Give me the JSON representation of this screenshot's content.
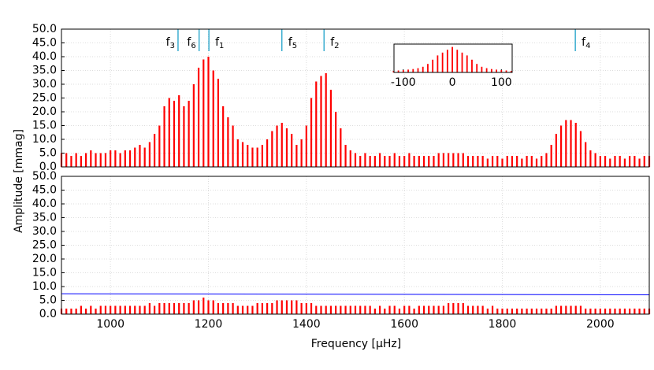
{
  "chart_data": [
    {
      "type": "bar",
      "color": "#ff0000",
      "grid": true,
      "xlim": [
        900,
        2100
      ],
      "ylim": [
        0,
        50
      ],
      "xticks": [
        1000,
        1200,
        1400,
        1600,
        1800,
        2000
      ],
      "yticks": [
        {
          "value": 0,
          "label": "0.0"
        },
        {
          "value": 5,
          "label": "5.0"
        },
        {
          "value": 10,
          "label": "10.0"
        },
        {
          "value": 15,
          "label": "15.0"
        },
        {
          "value": 20,
          "label": "20.0"
        },
        {
          "value": 25,
          "label": "25.0"
        },
        {
          "value": 30,
          "label": "30.0"
        },
        {
          "value": 35,
          "label": "35.0"
        },
        {
          "value": 40,
          "label": "40.0"
        },
        {
          "value": 45,
          "label": "45.0"
        },
        {
          "value": 50,
          "label": "50.0"
        }
      ],
      "x": [
        900,
        910,
        920,
        930,
        940,
        950,
        960,
        970,
        980,
        990,
        1000,
        1010,
        1020,
        1030,
        1040,
        1050,
        1060,
        1070,
        1080,
        1090,
        1100,
        1110,
        1120,
        1130,
        1140,
        1150,
        1160,
        1170,
        1180,
        1190,
        1200,
        1210,
        1220,
        1230,
        1240,
        1250,
        1260,
        1270,
        1280,
        1290,
        1300,
        1310,
        1320,
        1330,
        1340,
        1350,
        1360,
        1370,
        1380,
        1390,
        1400,
        1410,
        1420,
        1430,
        1440,
        1450,
        1460,
        1470,
        1480,
        1490,
        1500,
        1510,
        1520,
        1530,
        1540,
        1550,
        1560,
        1570,
        1580,
        1590,
        1600,
        1610,
        1620,
        1630,
        1640,
        1650,
        1660,
        1670,
        1680,
        1690,
        1700,
        1710,
        1720,
        1730,
        1740,
        1750,
        1760,
        1770,
        1780,
        1790,
        1800,
        1810,
        1820,
        1830,
        1840,
        1850,
        1860,
        1870,
        1880,
        1890,
        1900,
        1910,
        1920,
        1930,
        1940,
        1950,
        1960,
        1970,
        1980,
        1990,
        2000,
        2010,
        2020,
        2030,
        2040,
        2050,
        2060,
        2070,
        2080,
        2090,
        2100
      ],
      "values": [
        5,
        5,
        4,
        5,
        4,
        5,
        6,
        5,
        5,
        5,
        6,
        6,
        5,
        6,
        6,
        7,
        8,
        7,
        9,
        12,
        15,
        22,
        25,
        24,
        26,
        22,
        24,
        30,
        36,
        39,
        40,
        35,
        32,
        22,
        18,
        15,
        10,
        9,
        8,
        7,
        7,
        8,
        10,
        13,
        15,
        16,
        14,
        12,
        8,
        10,
        15,
        25,
        31,
        33,
        34,
        28,
        20,
        14,
        8,
        6,
        5,
        4,
        5,
        4,
        4,
        5,
        4,
        4,
        5,
        4,
        4,
        5,
        4,
        4,
        4,
        4,
        4,
        5,
        5,
        5,
        5,
        5,
        5,
        4,
        4,
        4,
        4,
        3,
        4,
        4,
        3,
        4,
        4,
        4,
        3,
        4,
        4,
        3,
        4,
        5,
        8,
        12,
        15,
        17,
        17,
        16,
        13,
        9,
        6,
        5,
        4,
        4,
        3,
        4,
        4,
        3,
        4,
        4,
        3,
        4,
        4
      ],
      "annotations": [
        {
          "x": 1138,
          "text": "f",
          "sub": "3",
          "side": "left"
        },
        {
          "x": 1181,
          "text": "f",
          "sub": "6",
          "side": "left"
        },
        {
          "x": 1201,
          "text": "f",
          "sub": "1",
          "side": "right"
        },
        {
          "x": 1350,
          "text": "f",
          "sub": "5",
          "side": "right"
        },
        {
          "x": 1436,
          "text": "f",
          "sub": "2",
          "side": "right"
        },
        {
          "x": 1949,
          "text": "f",
          "sub": "4",
          "side": "right"
        }
      ]
    },
    {
      "type": "bar",
      "color": "#ff0000",
      "grid": true,
      "xlabel": "Frequency [μHz]",
      "ylabel": "Amplitude [mmag]",
      "xlim": [
        900,
        2100
      ],
      "ylim": [
        0,
        50
      ],
      "xticks": [
        1000,
        1200,
        1400,
        1600,
        1800,
        2000
      ],
      "yticks": [
        {
          "value": 0,
          "label": "0.0"
        },
        {
          "value": 5,
          "label": "5.0"
        },
        {
          "value": 10,
          "label": "10.0"
        },
        {
          "value": 15,
          "label": "15.0"
        },
        {
          "value": 20,
          "label": "20.0"
        },
        {
          "value": 25,
          "label": "25.0"
        },
        {
          "value": 30,
          "label": "30.0"
        },
        {
          "value": 35,
          "label": "35.0"
        },
        {
          "value": 40,
          "label": "40.0"
        },
        {
          "value": 45,
          "label": "45.0"
        },
        {
          "value": 50,
          "label": "50.0"
        }
      ],
      "x": [
        900,
        910,
        920,
        930,
        940,
        950,
        960,
        970,
        980,
        990,
        1000,
        1010,
        1020,
        1030,
        1040,
        1050,
        1060,
        1070,
        1080,
        1090,
        1100,
        1110,
        1120,
        1130,
        1140,
        1150,
        1160,
        1170,
        1180,
        1190,
        1200,
        1210,
        1220,
        1230,
        1240,
        1250,
        1260,
        1270,
        1280,
        1290,
        1300,
        1310,
        1320,
        1330,
        1340,
        1350,
        1360,
        1370,
        1380,
        1390,
        1400,
        1410,
        1420,
        1430,
        1440,
        1450,
        1460,
        1470,
        1480,
        1490,
        1500,
        1510,
        1520,
        1530,
        1540,
        1550,
        1560,
        1570,
        1580,
        1590,
        1600,
        1610,
        1620,
        1630,
        1640,
        1650,
        1660,
        1670,
        1680,
        1690,
        1700,
        1710,
        1720,
        1730,
        1740,
        1750,
        1760,
        1770,
        1780,
        1790,
        1800,
        1810,
        1820,
        1830,
        1840,
        1850,
        1860,
        1870,
        1880,
        1890,
        1900,
        1910,
        1920,
        1930,
        1940,
        1950,
        1960,
        1970,
        1980,
        1990,
        2000,
        2010,
        2020,
        2030,
        2040,
        2050,
        2060,
        2070,
        2080,
        2090,
        2100
      ],
      "values": [
        2,
        2,
        2,
        2,
        3,
        2,
        3,
        2,
        3,
        3,
        3,
        3,
        3,
        3,
        3,
        3,
        3,
        3,
        4,
        3,
        4,
        4,
        4,
        4,
        4,
        4,
        4,
        5,
        5,
        6,
        5,
        5,
        4,
        4,
        4,
        4,
        3,
        3,
        3,
        3,
        4,
        4,
        4,
        4,
        5,
        5,
        5,
        5,
        5,
        4,
        4,
        4,
        3,
        3,
        3,
        3,
        3,
        3,
        3,
        3,
        3,
        3,
        3,
        3,
        2,
        3,
        2,
        3,
        3,
        2,
        3,
        3,
        2,
        3,
        3,
        3,
        3,
        3,
        3,
        4,
        4,
        4,
        4,
        3,
        3,
        3,
        3,
        2,
        3,
        2,
        2,
        2,
        2,
        2,
        2,
        2,
        2,
        2,
        2,
        2,
        2,
        3,
        3,
        3,
        3,
        3,
        3,
        2,
        2,
        2,
        2,
        2,
        2,
        2,
        2,
        2,
        2,
        2,
        2,
        2,
        2
      ],
      "threshold": {
        "x": [
          900,
          2100
        ],
        "values": [
          7.4,
          7.0
        ],
        "color": "#0000ff"
      }
    },
    {
      "type": "bar",
      "color": "#ff0000",
      "xlim": [
        -119,
        122
      ],
      "ylim": [
        0,
        1
      ],
      "xticks": [
        -100,
        0,
        100
      ],
      "x": [
        -120,
        -110,
        -100,
        -90,
        -80,
        -70,
        -60,
        -50,
        -40,
        -30,
        -20,
        -10,
        0,
        10,
        20,
        30,
        40,
        50,
        60,
        70,
        80,
        90,
        100,
        110,
        120
      ],
      "values": [
        0.05,
        0.07,
        0.08,
        0.1,
        0.12,
        0.15,
        0.2,
        0.3,
        0.45,
        0.6,
        0.7,
        0.8,
        0.9,
        0.8,
        0.7,
        0.6,
        0.45,
        0.3,
        0.2,
        0.15,
        0.12,
        0.1,
        0.08,
        0.07,
        0.05
      ]
    }
  ]
}
